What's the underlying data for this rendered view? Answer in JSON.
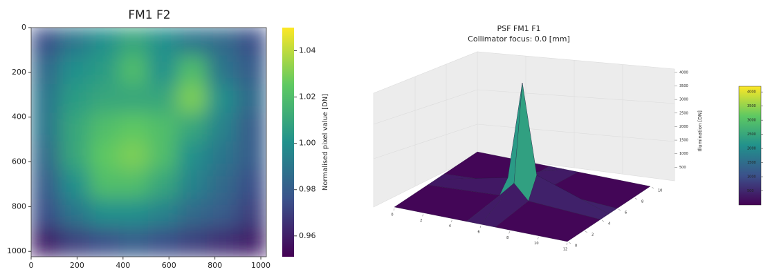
{
  "chart_data": [
    {
      "type": "heatmap",
      "title": "FM1 F2",
      "colormap": "viridis",
      "xlim": [
        0,
        1024
      ],
      "ylim": [
        0,
        1024
      ],
      "xticks": [
        0,
        200,
        400,
        600,
        800,
        1000
      ],
      "yticks": [
        0,
        200,
        400,
        600,
        800,
        1000
      ],
      "values": [
        [
          0.975,
          0.99,
          1.0,
          1.01,
          1.0,
          0.99,
          0.985,
          0.975
        ],
        [
          0.985,
          1.0,
          1.005,
          1.02,
          1.0,
          1.02,
          0.99,
          0.98
        ],
        [
          0.99,
          1.005,
          1.01,
          1.01,
          1.01,
          1.03,
          1.0,
          0.985
        ],
        [
          0.99,
          1.01,
          1.02,
          1.025,
          1.02,
          1.01,
          0.995,
          0.98
        ],
        [
          0.985,
          1.01,
          1.025,
          1.03,
          1.02,
          1.0,
          0.99,
          0.98
        ],
        [
          0.98,
          1.0,
          1.02,
          1.02,
          1.01,
          0.995,
          0.985,
          0.975
        ],
        [
          0.975,
          0.99,
          1.0,
          1.0,
          0.995,
          0.985,
          0.98,
          0.97
        ],
        [
          0.96,
          0.97,
          0.975,
          0.98,
          0.975,
          0.97,
          0.965,
          0.96
        ]
      ],
      "colorbar_label": "Normalised pixel value [DN]",
      "clim": [
        0.951,
        1.05
      ],
      "cticks": [
        0.96,
        0.98,
        {
          "value": 1,
          "label": "1.00"
        },
        1.02,
        1.04
      ]
    },
    {
      "type": "surface3d",
      "title": "PSF FM1 F1",
      "subtitle": "Collimator focus: 0.0 [mm]",
      "colormap": "viridis",
      "zlabel": "Illumination [DN]",
      "x": [
        0,
        5,
        6,
        7,
        12
      ],
      "y": [
        0,
        4,
        5,
        6,
        10
      ],
      "z": [
        [
          0,
          0,
          0,
          0,
          0
        ],
        [
          0,
          150,
          600,
          150,
          0
        ],
        [
          0,
          700,
          4200,
          700,
          0
        ],
        [
          0,
          150,
          900,
          150,
          0
        ],
        [
          0,
          0,
          0,
          0,
          0
        ]
      ],
      "xlim": [
        0,
        12
      ],
      "ylim": [
        0,
        10
      ],
      "zlim": [
        0,
        4200
      ],
      "xticks": [
        0,
        2,
        4,
        6,
        8,
        10,
        12
      ],
      "yticks": [
        0,
        2,
        4,
        6,
        8,
        10
      ],
      "zticks": [
        500,
        1000,
        1500,
        2000,
        2500,
        3000,
        3500,
        4000
      ],
      "clim": [
        0,
        4200
      ],
      "cticks": [
        500,
        1000,
        1500,
        2000,
        2500,
        3000,
        3500,
        4000
      ]
    }
  ]
}
